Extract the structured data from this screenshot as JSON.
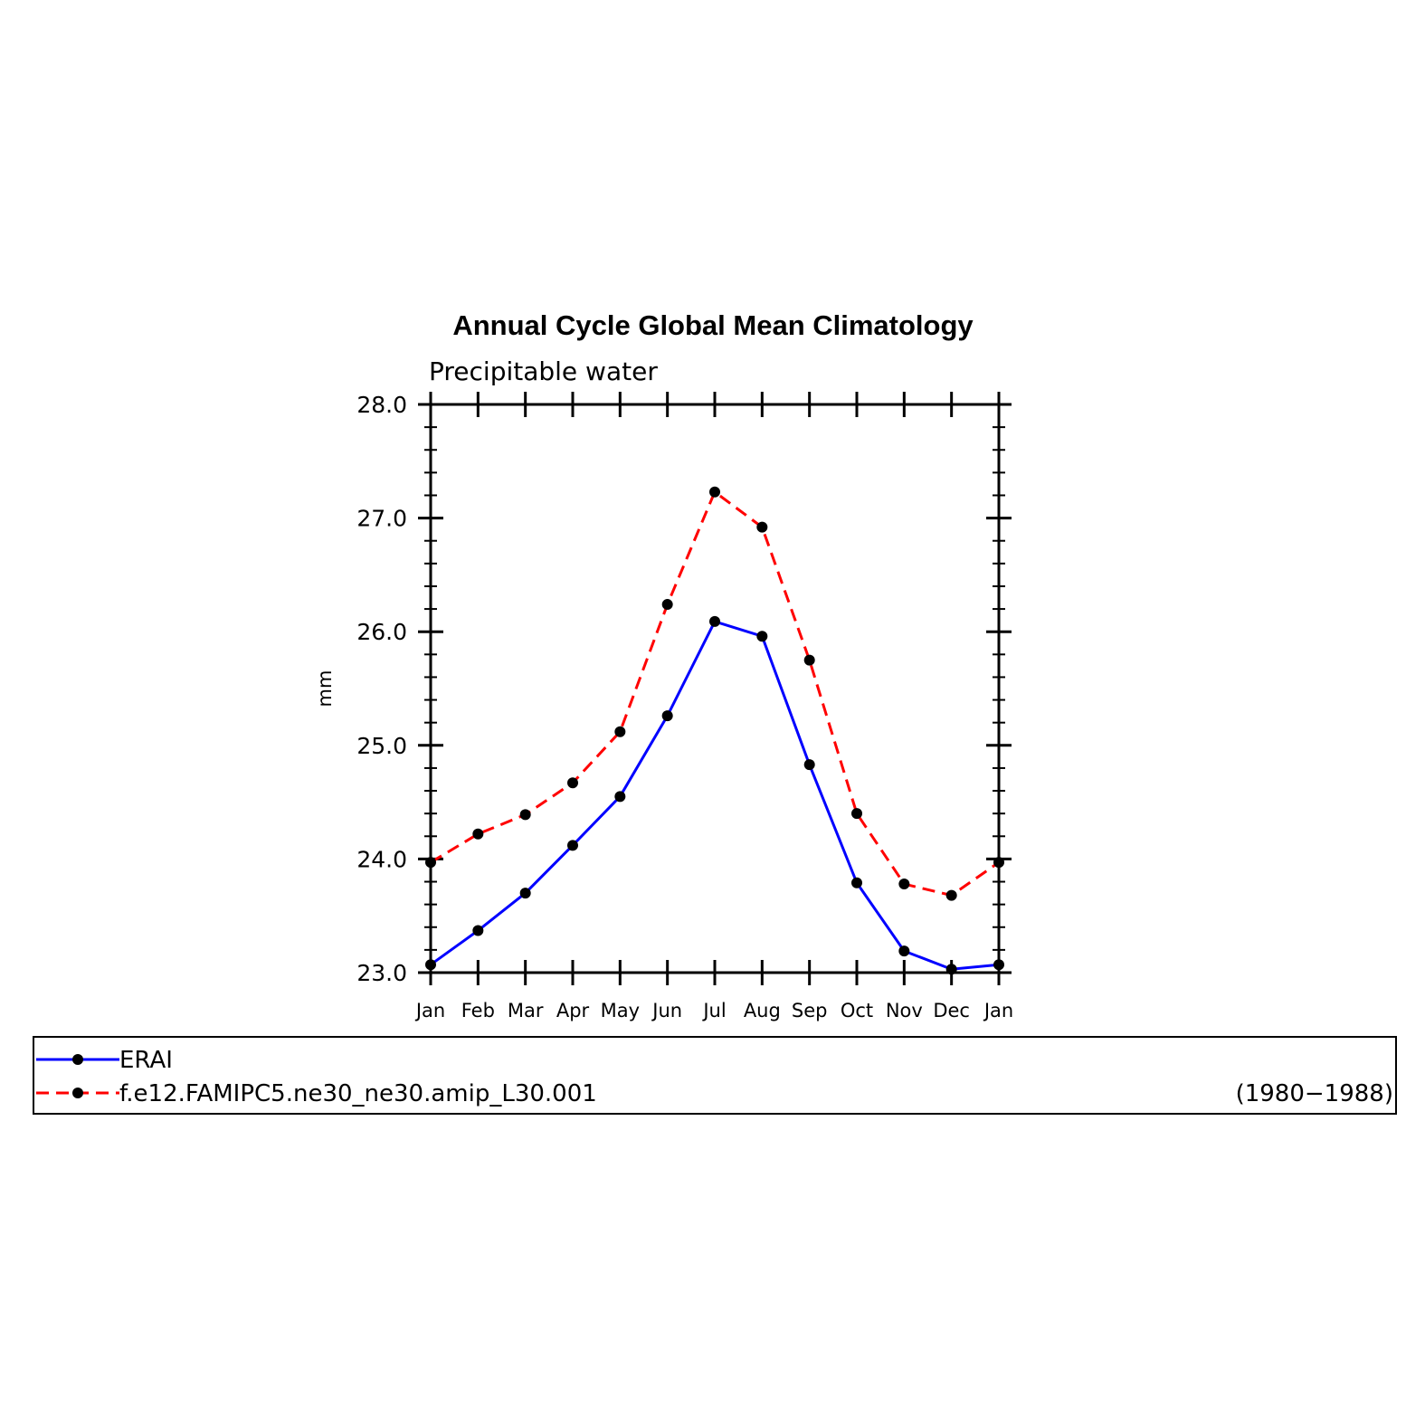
{
  "chart_data": {
    "type": "line",
    "title": "Annual Cycle Global Mean Climatology",
    "subtitle": "Precipitable water",
    "ylabel": "mm",
    "xlabel": "",
    "ylim": [
      23.0,
      28.0
    ],
    "yticks": [
      "23.0",
      "24.0",
      "25.0",
      "26.0",
      "27.0",
      "28.0"
    ],
    "categories": [
      "Jan",
      "Feb",
      "Mar",
      "Apr",
      "May",
      "Jun",
      "Jul",
      "Aug",
      "Sep",
      "Oct",
      "Nov",
      "Dec",
      "Jan"
    ],
    "series": [
      {
        "name": "ERAI",
        "color": "#0000ff",
        "style": "solid",
        "values": [
          23.07,
          23.37,
          23.7,
          24.12,
          24.55,
          25.26,
          26.09,
          25.96,
          24.83,
          23.79,
          23.19,
          23.03,
          23.07
        ]
      },
      {
        "name": "f.e12.FAMIPC5.ne30_ne30.amip_L30.001",
        "color": "#ff0000",
        "style": "dashed",
        "values": [
          23.97,
          24.22,
          24.39,
          24.67,
          25.12,
          26.24,
          27.23,
          26.92,
          25.75,
          24.4,
          23.78,
          23.68,
          23.97
        ]
      }
    ],
    "legend_note": "(1980−1988)",
    "legend_placement": "bottom",
    "grid": false
  }
}
